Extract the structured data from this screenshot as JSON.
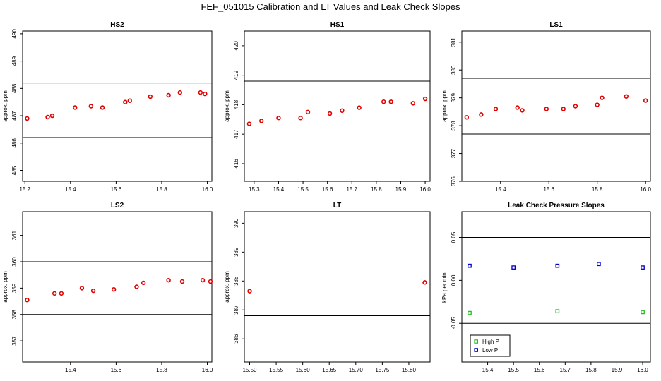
{
  "figure": {
    "title": "FEF_051015  Calibration and LT Values and Leak Check Slopes"
  },
  "chart_data": [
    {
      "id": "hs2",
      "type": "scatter",
      "title": "HS2",
      "ylabel": "approx. ppm",
      "xlim": [
        15.19,
        16.02
      ],
      "ylim": [
        484.6,
        490.1
      ],
      "xticks": [
        15.2,
        15.4,
        15.6,
        15.8,
        16.0
      ],
      "xtick_labels": [
        "15.2",
        "15.4",
        "15.6",
        "15.8",
        "16.0"
      ],
      "yticks": [
        485,
        486,
        487,
        488,
        489,
        490
      ],
      "ytick_labels": [
        "485",
        "486",
        "487",
        "488",
        "489",
        "490"
      ],
      "hlines": [
        486.2,
        488.2
      ],
      "series": [
        {
          "name": "calibration",
          "color": "#e00000",
          "x": [
            15.21,
            15.3,
            15.32,
            15.42,
            15.49,
            15.54,
            15.64,
            15.66,
            15.75,
            15.83,
            15.88,
            15.97,
            15.99
          ],
          "y": [
            486.9,
            486.95,
            487.0,
            487.3,
            487.35,
            487.3,
            487.5,
            487.55,
            487.7,
            487.75,
            487.85,
            487.85,
            487.8
          ]
        }
      ]
    },
    {
      "id": "hs1",
      "type": "scatter",
      "title": "HS1",
      "ylabel": "approx. ppm",
      "xlim": [
        15.26,
        16.02
      ],
      "ylim": [
        415.4,
        420.5
      ],
      "xticks": [
        15.3,
        15.4,
        15.5,
        15.6,
        15.7,
        15.8,
        15.9,
        16.0
      ],
      "xtick_labels": [
        "15.3",
        "15.4",
        "15.5",
        "15.6",
        "15.7",
        "15.8",
        "15.9",
        "16.0"
      ],
      "yticks": [
        416,
        417,
        418,
        419,
        420
      ],
      "ytick_labels": [
        "416",
        "417",
        "418",
        "419",
        "420"
      ],
      "hlines": [
        416.8,
        418.8
      ],
      "series": [
        {
          "name": "calibration",
          "color": "#e00000",
          "x": [
            15.28,
            15.33,
            15.4,
            15.49,
            15.52,
            15.61,
            15.66,
            15.73,
            15.83,
            15.86,
            15.95,
            16.0
          ],
          "y": [
            417.35,
            417.45,
            417.55,
            417.55,
            417.75,
            417.7,
            417.8,
            417.9,
            418.1,
            418.1,
            418.05,
            418.2
          ]
        }
      ]
    },
    {
      "id": "ls1",
      "type": "scatter",
      "title": "LS1",
      "ylabel": "approx. ppm",
      "xlim": [
        15.24,
        16.02
      ],
      "ylim": [
        376.0,
        381.4
      ],
      "xticks": [
        15.4,
        15.6,
        15.8,
        16.0
      ],
      "xtick_labels": [
        "15.4",
        "15.6",
        "15.8",
        "16.0"
      ],
      "yticks": [
        376,
        377,
        378,
        379,
        380,
        381
      ],
      "ytick_labels": [
        "376",
        "377",
        "378",
        "379",
        "380",
        "381"
      ],
      "hlines": [
        377.7,
        379.7
      ],
      "series": [
        {
          "name": "calibration",
          "color": "#e00000",
          "x": [
            15.26,
            15.32,
            15.38,
            15.47,
            15.49,
            15.59,
            15.66,
            15.71,
            15.8,
            15.82,
            15.92,
            16.0
          ],
          "y": [
            378.3,
            378.4,
            378.6,
            378.65,
            378.55,
            378.6,
            378.6,
            378.7,
            378.75,
            379.0,
            379.05,
            378.9
          ]
        }
      ]
    },
    {
      "id": "ls2",
      "type": "scatter",
      "title": "LS2",
      "ylabel": "approx. ppm",
      "xlim": [
        15.19,
        16.02
      ],
      "ylim": [
        356.2,
        361.9
      ],
      "xticks": [
        15.4,
        15.6,
        15.8,
        16.0
      ],
      "xtick_labels": [
        "15.4",
        "15.6",
        "15.8",
        "16.0"
      ],
      "yticks": [
        357,
        358,
        359,
        360,
        361
      ],
      "ytick_labels": [
        "357",
        "358",
        "359",
        "360",
        "361"
      ],
      "hlines": [
        358.0,
        360.0
      ],
      "series": [
        {
          "name": "calibration",
          "color": "#e00000",
          "x": [
            15.21,
            15.33,
            15.36,
            15.45,
            15.5,
            15.59,
            15.69,
            15.72,
            15.83,
            15.89,
            15.98,
            16.05
          ],
          "y": [
            358.55,
            358.8,
            358.8,
            359.0,
            358.9,
            358.95,
            359.05,
            359.2,
            359.3,
            359.25,
            359.3,
            359.25
          ]
        }
      ]
    },
    {
      "id": "lt",
      "type": "scatter",
      "title": "LT",
      "ylabel": "approx. ppm",
      "xlim": [
        15.49,
        15.84
      ],
      "ylim": [
        385.2,
        390.4
      ],
      "xticks": [
        15.5,
        15.55,
        15.6,
        15.65,
        15.7,
        15.75,
        15.8
      ],
      "xtick_labels": [
        "15.50",
        "15.55",
        "15.60",
        "15.65",
        "15.70",
        "15.75",
        "15.80"
      ],
      "yticks": [
        386,
        387,
        388,
        389,
        390
      ],
      "ytick_labels": [
        "386",
        "387",
        "388",
        "389",
        "390"
      ],
      "hlines": [
        386.8,
        388.8
      ],
      "series": [
        {
          "name": "LT",
          "color": "#e00000",
          "x": [
            15.5,
            15.83
          ],
          "y": [
            387.65,
            387.95
          ]
        }
      ]
    },
    {
      "id": "leak",
      "type": "scatter",
      "title": "Leak Check Pressure Slopes",
      "ylabel": "kPa per min.",
      "xlim": [
        15.3,
        16.03
      ],
      "ylim": [
        -0.095,
        0.08
      ],
      "xticks": [
        15.4,
        15.5,
        15.6,
        15.7,
        15.8,
        15.9,
        16.0
      ],
      "xtick_labels": [
        "15.4",
        "15.5",
        "15.6",
        "15.7",
        "15.8",
        "15.9",
        "16.0"
      ],
      "yticks": [
        -0.05,
        0.0,
        0.05
      ],
      "ytick_labels": [
        "-0.05",
        "0.00",
        "0.05"
      ],
      "hlines": [
        -0.05,
        0.05
      ],
      "legend": "bottom-left",
      "series": [
        {
          "name": "High P",
          "color": "#22bb22",
          "x": [
            15.33,
            15.67,
            16.0
          ],
          "y": [
            -0.038,
            -0.036,
            -0.037
          ]
        },
        {
          "name": "Low P",
          "color": "#0000cc",
          "x": [
            15.33,
            15.5,
            15.67,
            15.83,
            16.0
          ],
          "y": [
            0.017,
            0.015,
            0.017,
            0.019,
            0.015
          ]
        }
      ]
    }
  ]
}
